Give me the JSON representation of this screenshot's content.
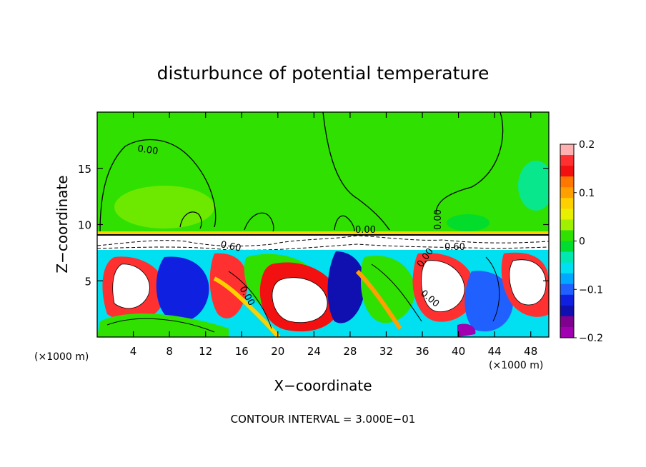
{
  "chart_data": {
    "type": "heatmap",
    "title": "disturbunce of potential temperature",
    "xlabel": "X−coordinate",
    "ylabel": "Z−coordinate",
    "x_unit_left": "(×1000 m)",
    "x_unit_right": "(×1000 m)",
    "footer": "CONTOUR INTERVAL = 3.000E−01",
    "xlim": [
      0,
      50
    ],
    "ylim": [
      0,
      20
    ],
    "x_ticks": [
      4,
      8,
      12,
      16,
      20,
      24,
      28,
      32,
      36,
      40,
      44,
      48
    ],
    "x_tick_labels": [
      "4",
      "8",
      "12",
      "16",
      "20",
      "24",
      "28",
      "32",
      "36",
      "40",
      "44",
      "48"
    ],
    "y_ticks": [
      5,
      10,
      15
    ],
    "y_tick_labels": [
      "5",
      "10",
      "15"
    ],
    "colorbar": {
      "range": [
        -0.2,
        0.2
      ],
      "ticks": [
        0.2,
        0.1,
        0,
        -0.1,
        -0.2
      ],
      "tick_labels": [
        "0.2",
        "0.1",
        "0",
        "−0.1",
        "−0.2"
      ],
      "colors": [
        "#ffb0b0",
        "#ff3030",
        "#f21010",
        "#ff7700",
        "#ffa000",
        "#ffd000",
        "#e8f000",
        "#a0f000",
        "#30e000",
        "#00dc30",
        "#00e8b0",
        "#00e0f0",
        "#00a8ff",
        "#2060ff",
        "#1020e0",
        "#1010b0",
        "#800090",
        "#a000b0"
      ]
    },
    "contour_labels": [
      "0.00",
      "0.00",
      "0.00",
      "0.60",
      "0.00",
      "0.00",
      "0.00",
      "0.60"
    ],
    "tropopause_z": 9.0
  }
}
